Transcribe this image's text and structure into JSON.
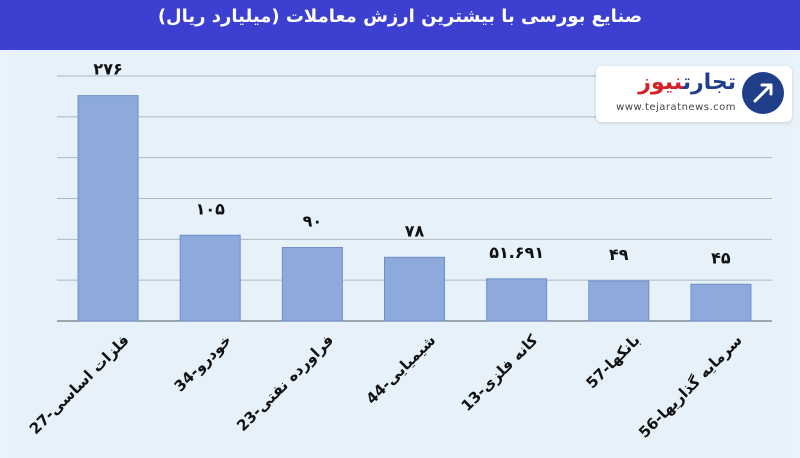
{
  "title": "صنایع بورسی با بیشترین ارزش معاملات  (میلیارد ریال)",
  "logo": {
    "name_part1": "تجارت",
    "name_part2": "نیوز",
    "url": "www.tejaratnews.com"
  },
  "colors": {
    "title_bg": "#3c3fcf",
    "bar": "#8eaadc",
    "bar_stroke": "#6f8fc9"
  },
  "chart_data": {
    "type": "bar",
    "title": "صنایع بورسی با بیشترین ارزش معاملات  (میلیارد ریال)",
    "categories": [
      "27-فلزات اساسی",
      "34-خودرو",
      "23-فراورده نفتی",
      "44-شیمیایی",
      "13-کانه فلزی",
      "57-بانکها",
      "56-سرمایه گذاریها"
    ],
    "values": [
      276,
      105,
      90,
      78,
      51.691,
      49,
      45
    ],
    "value_labels": [
      "۲۷۶",
      "۱۰۵",
      "۹۰",
      "۷۸",
      "۵۱.۶۹۱",
      "۴۹",
      "۴۵"
    ],
    "ylim": [
      0,
      300
    ],
    "grid": true,
    "legend": "none"
  }
}
